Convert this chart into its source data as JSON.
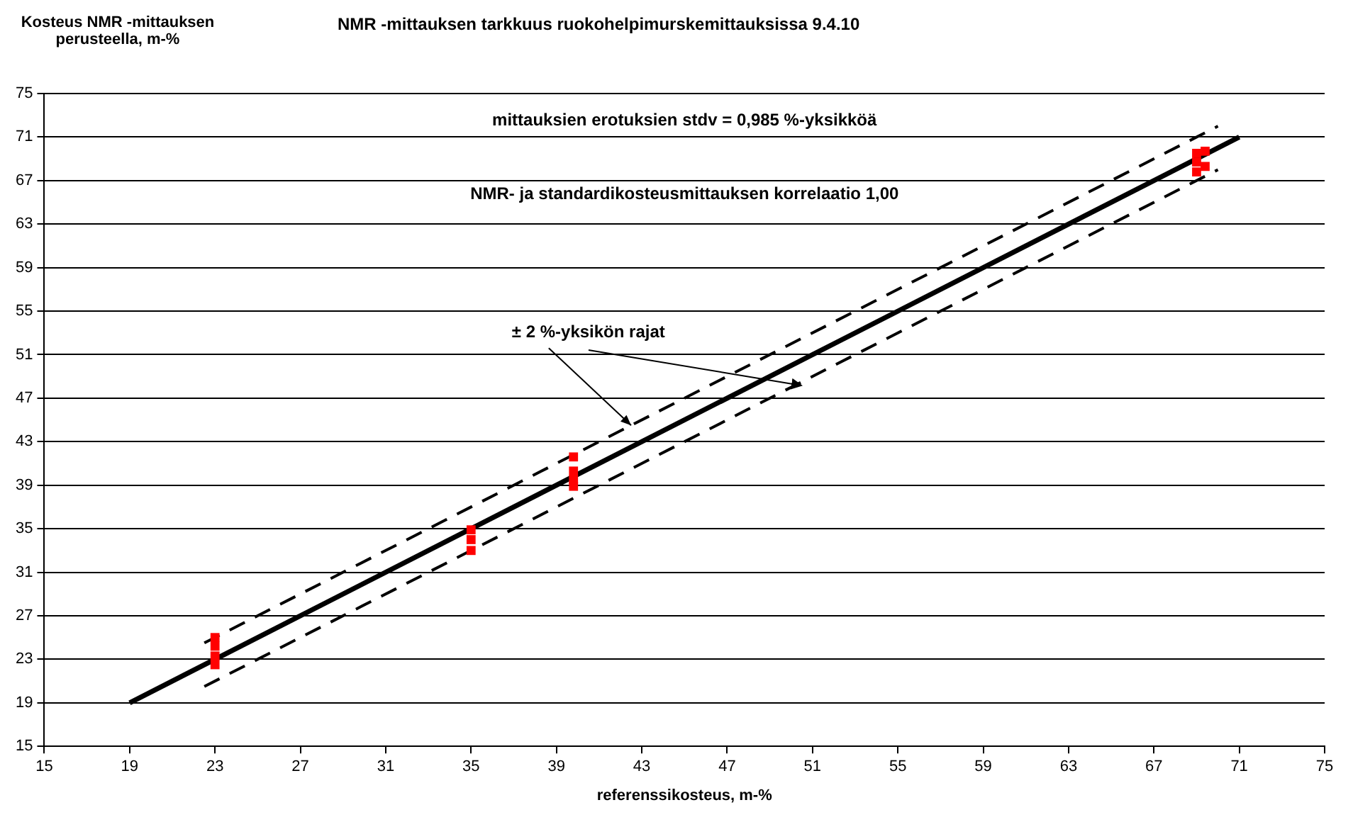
{
  "chart_data": {
    "type": "scatter",
    "title": "NMR -mittauksen tarkkuus ruokohelpimurskemittauksissa 9.4.10",
    "xlabel": "referenssikosteus, m-%",
    "ylabel": "Kosteus NMR -mittauksen perusteella, m-%",
    "xlim": [
      15,
      75
    ],
    "xticks": [
      15,
      19,
      23,
      27,
      31,
      35,
      39,
      43,
      47,
      51,
      55,
      59,
      63,
      67,
      71,
      75
    ],
    "ylim": [
      15,
      75
    ],
    "yticks": [
      15,
      19,
      23,
      27,
      31,
      35,
      39,
      43,
      47,
      51,
      55,
      59,
      63,
      67,
      71,
      75
    ],
    "grid": "y",
    "legend": false,
    "series": [
      {
        "marker": "square",
        "color": "#ff0000",
        "x": [
          23,
          23,
          23,
          23,
          35,
          35,
          35,
          39.8,
          39.8,
          39.8,
          39.8,
          69,
          69,
          69,
          69.4,
          69.4
        ],
        "values": [
          22.5,
          23.3,
          24.2,
          25,
          33,
          34,
          34.9,
          38.9,
          39.5,
          40.3,
          41.6,
          67.8,
          68.7,
          69.5,
          68.3,
          69.7
        ]
      },
      {
        "type": "line",
        "color": "#000000",
        "line_style": "solid",
        "x": [
          19,
          71
        ],
        "values": [
          19,
          71
        ]
      },
      {
        "type": "line",
        "color": "#000000",
        "line_style": "dashed",
        "x": [
          22.5,
          70
        ],
        "values": [
          24.5,
          72
        ]
      },
      {
        "type": "line",
        "color": "#000000",
        "line_style": "dashed",
        "x": [
          22.5,
          70
        ],
        "values": [
          20.5,
          68
        ]
      }
    ],
    "annotations": [
      "mittauksien erotuksien stdv = 0,985 %-yksikköä",
      "NMR- ja standardikosteusmittauksen korrelaatio 1,00",
      {
        "text": "± 2 %-yksikön rajat",
        "x": 42.5,
        "y": 44.5
      }
    ]
  }
}
